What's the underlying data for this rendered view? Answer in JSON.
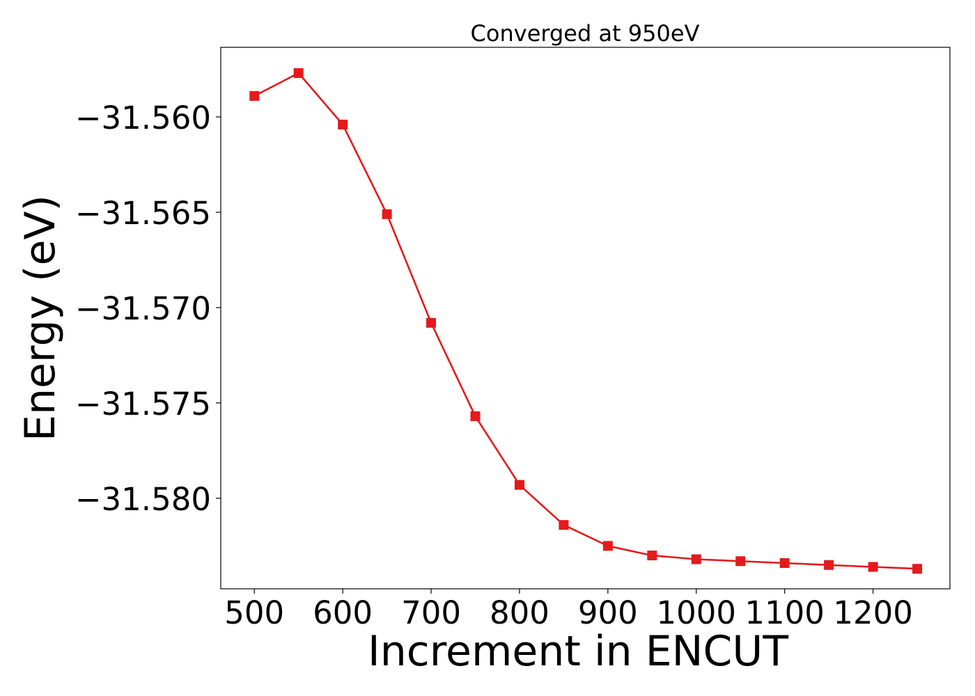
{
  "chart_data": {
    "type": "line",
    "title": "Converged at 950eV",
    "xlabel": "Increment in ENCUT",
    "ylabel": "Energy (eV)",
    "x": [
      500,
      550,
      600,
      650,
      700,
      750,
      800,
      850,
      900,
      950,
      1000,
      1050,
      1100,
      1150,
      1200,
      1250
    ],
    "series": [
      {
        "values": [
          -31.5589,
          -31.5577,
          -31.5604,
          -31.5651,
          -31.5708,
          -31.5757,
          -31.5793,
          -31.5814,
          -31.5825,
          -31.583,
          -31.5832,
          -31.5833,
          -31.5834,
          -31.5835,
          -31.5836,
          -31.5837
        ]
      }
    ],
    "xlim": [
      462,
      1287
    ],
    "ylim": [
      -31.58475,
      -31.55635
    ],
    "x_ticks": [
      500,
      600,
      700,
      800,
      900,
      1000,
      1100,
      1200
    ],
    "x_tick_labels": [
      "500",
      "600",
      "700",
      "800",
      "900",
      "1000",
      "1100",
      "1200"
    ],
    "y_ticks": [
      -31.56,
      -31.565,
      -31.57,
      -31.575,
      -31.58
    ],
    "y_tick_labels": [
      "−31.560",
      "−31.565",
      "−31.570",
      "−31.575",
      "−31.580"
    ],
    "grid": false,
    "line_color": "#e41a1c",
    "marker": "square"
  }
}
